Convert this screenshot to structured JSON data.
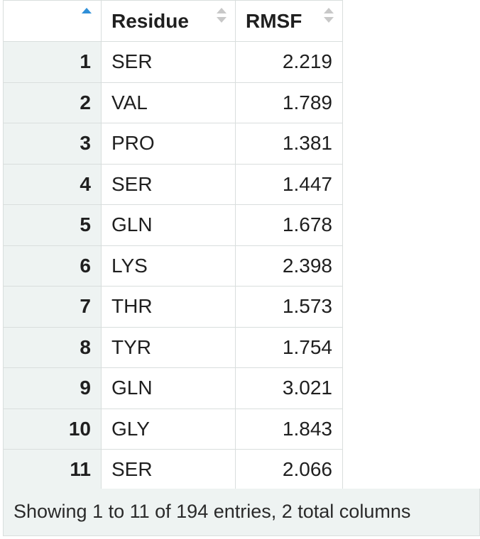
{
  "table": {
    "columns": [
      {
        "label": "",
        "sort": "asc"
      },
      {
        "label": "Residue",
        "sort": "none"
      },
      {
        "label": "RMSF",
        "sort": "none"
      }
    ],
    "rows": [
      {
        "index": "1",
        "residue": "SER",
        "rmsf": "2.219"
      },
      {
        "index": "2",
        "residue": "VAL",
        "rmsf": "1.789"
      },
      {
        "index": "3",
        "residue": "PRO",
        "rmsf": "1.381"
      },
      {
        "index": "4",
        "residue": "SER",
        "rmsf": "1.447"
      },
      {
        "index": "5",
        "residue": "GLN",
        "rmsf": "1.678"
      },
      {
        "index": "6",
        "residue": "LYS",
        "rmsf": "2.398"
      },
      {
        "index": "7",
        "residue": "THR",
        "rmsf": "1.573"
      },
      {
        "index": "8",
        "residue": "TYR",
        "rmsf": "1.754"
      },
      {
        "index": "9",
        "residue": "GLN",
        "rmsf": "3.021"
      },
      {
        "index": "10",
        "residue": "GLY",
        "rmsf": "1.843"
      },
      {
        "index": "11",
        "residue": "SER",
        "rmsf": "2.066"
      }
    ]
  },
  "footer": {
    "text": "Showing 1 to 11 of 194 entries, 2 total columns"
  },
  "colors": {
    "sort_active": "#2f8fd8",
    "sort_inactive": "#c8c8c8",
    "index_column_bg": "#eef3f2",
    "footer_bg": "#eef3f2",
    "border": "#d9dedd"
  },
  "icons": {
    "sort_index": "sort-ascending-icon",
    "sort_residue": "sort-icon",
    "sort_rmsf": "sort-icon"
  }
}
